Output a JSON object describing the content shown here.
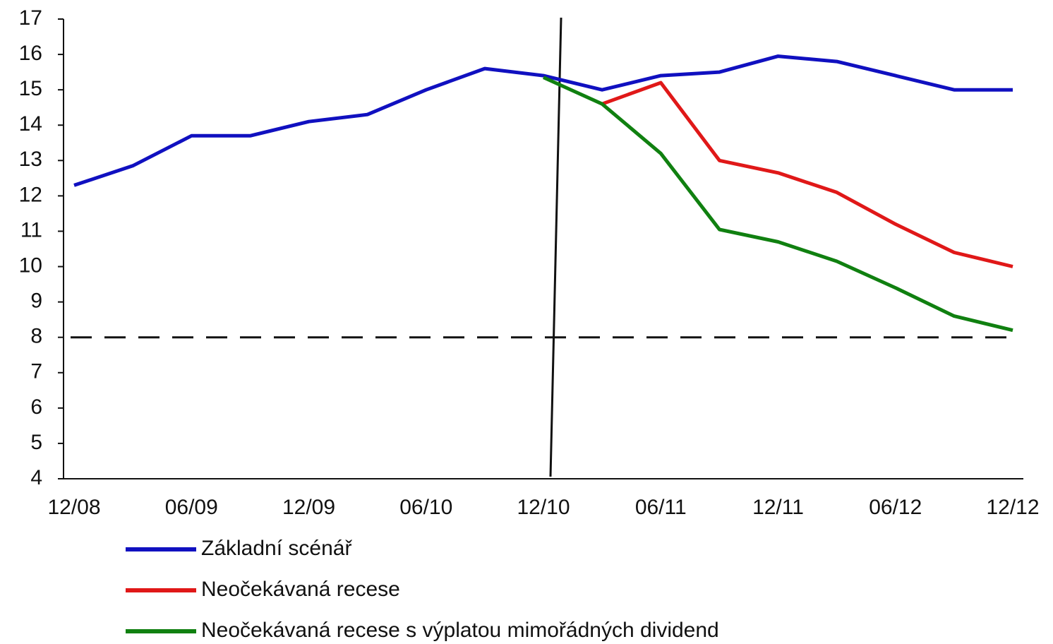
{
  "chart_data": {
    "type": "line",
    "categories": [
      "12/08",
      null,
      "06/09",
      null,
      "12/09",
      null,
      "06/10",
      null,
      "12/10",
      null,
      "06/11",
      null,
      "12/11",
      null,
      "06/12",
      null,
      "12/12"
    ],
    "series": [
      {
        "name": "Základní scénář",
        "color": "#1010c0",
        "values": [
          12.3,
          12.85,
          13.7,
          13.7,
          14.1,
          14.3,
          15.0,
          15.6,
          15.4,
          15.0,
          15.4,
          15.5,
          15.95,
          15.8,
          15.4,
          15.0,
          15.0
        ]
      },
      {
        "name": "Neočekávaná recese",
        "color": "#e01818",
        "values": [
          null,
          null,
          null,
          null,
          null,
          null,
          null,
          null,
          null,
          14.6,
          15.2,
          13.0,
          12.65,
          12.1,
          11.2,
          10.4,
          10.0
        ]
      },
      {
        "name": "Neočekávaná recese s výplatou mimořádných dividend",
        "color": "#108010",
        "values": [
          null,
          null,
          null,
          null,
          null,
          null,
          null,
          null,
          15.35,
          14.6,
          13.2,
          11.05,
          10.7,
          10.15,
          9.4,
          8.6,
          8.2
        ]
      }
    ],
    "ylim": [
      4,
      17
    ],
    "yticks": [
      4,
      5,
      6,
      7,
      8,
      9,
      10,
      11,
      12,
      13,
      14,
      15,
      16,
      17
    ],
    "hline": 8,
    "vline": "12/10",
    "grid": false
  }
}
